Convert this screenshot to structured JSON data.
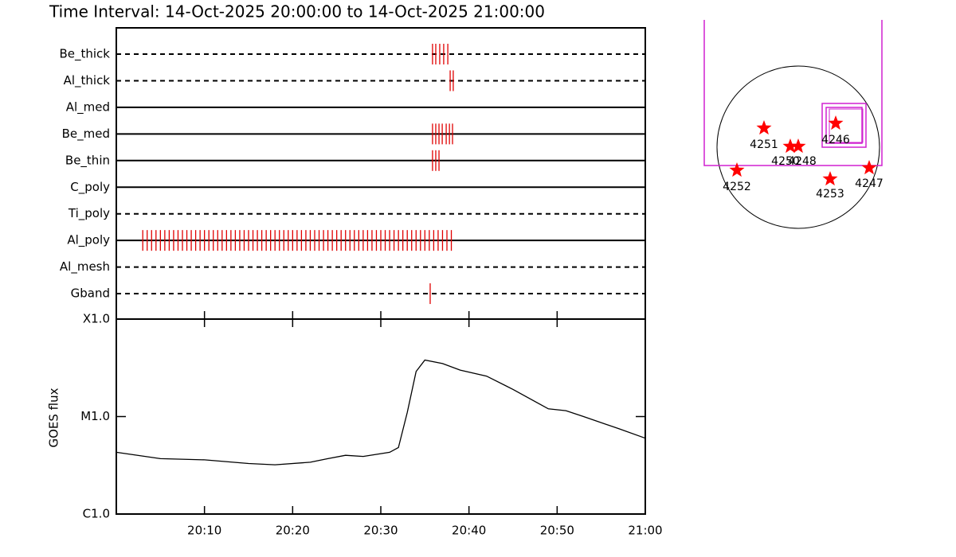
{
  "chart_data": [
    {
      "type": "timeline",
      "title": "Time Interval: 14-Oct-2025 20:00:00 to 14-Oct-2025 21:00:00",
      "categories": [
        "Be_thick",
        "Al_thick",
        "Al_med",
        "Be_med",
        "Be_thin",
        "C_poly",
        "Ti_poly",
        "Al_poly",
        "Al_mesh",
        "Gband"
      ],
      "line_styles": [
        "dashed",
        "dashed",
        "solid",
        "solid",
        "solid",
        "solid",
        "dashed",
        "solid",
        "dashed",
        "dashed"
      ],
      "color": "#e00000",
      "xlim": [
        "20:00",
        "21:00"
      ],
      "events": [
        [
          "20:35:52",
          "20:36:14",
          "20:36:41",
          "20:37:08",
          "20:37:36"
        ],
        [
          "20:37:52",
          "20:38:13"
        ],
        [],
        [
          "20:35:52",
          "20:36:14",
          "20:36:36",
          "20:36:58",
          "20:37:25",
          "20:37:47",
          "20:38:08"
        ],
        [
          "20:35:52",
          "20:36:14",
          "20:36:36"
        ],
        [],
        [],
        [
          "20:03:00",
          "20:03:30",
          "20:04:00",
          "20:04:30",
          "20:05:00",
          "20:05:30",
          "20:06:00",
          "20:06:30",
          "20:07:00",
          "20:07:30",
          "20:08:00",
          "20:08:30",
          "20:09:00",
          "20:09:30",
          "20:10:00",
          "20:10:30",
          "20:11:00",
          "20:11:30",
          "20:12:00",
          "20:12:30",
          "20:13:00",
          "20:13:30",
          "20:14:00",
          "20:14:30",
          "20:15:00",
          "20:15:30",
          "20:16:00",
          "20:16:30",
          "20:17:00",
          "20:17:30",
          "20:18:00",
          "20:18:30",
          "20:19:00",
          "20:19:30",
          "20:20:00",
          "20:20:30",
          "20:21:00",
          "20:21:30",
          "20:22:00",
          "20:22:30",
          "20:23:00",
          "20:23:30",
          "20:24:00",
          "20:24:30",
          "20:25:00",
          "20:25:30",
          "20:26:00",
          "20:26:30",
          "20:27:00",
          "20:27:30",
          "20:28:00",
          "20:28:30",
          "20:29:00",
          "20:29:30",
          "20:30:00",
          "20:30:30",
          "20:31:00",
          "20:31:30",
          "20:32:00",
          "20:32:30",
          "20:33:00",
          "20:33:30",
          "20:34:00",
          "20:34:30",
          "20:35:00",
          "20:35:30",
          "20:36:00",
          "20:36:30",
          "20:37:00",
          "20:37:30",
          "20:38:00"
        ],
        [],
        [
          "20:35:36"
        ]
      ]
    },
    {
      "type": "line",
      "ylabel": "GOES flux",
      "log_scale": true,
      "color": "#000000",
      "xlim": [
        "20:00",
        "21:00"
      ],
      "xticks": [
        "20:10",
        "20:20",
        "20:30",
        "20:40",
        "20:50",
        "21:00"
      ],
      "ylim": [
        1e-06,
        0.0001
      ],
      "yticks": [
        {
          "value": 1e-06,
          "label": "C1.0"
        },
        {
          "value": 1e-05,
          "label": "M1.0"
        },
        {
          "value": 0.0001,
          "label": "X1.0"
        }
      ],
      "x": [
        "20:00",
        "20:05",
        "20:10",
        "20:15",
        "20:18",
        "20:22",
        "20:24",
        "20:26",
        "20:28",
        "20:31",
        "20:32",
        "20:33",
        "20:34",
        "20:35",
        "20:37",
        "20:39",
        "20:42",
        "20:45",
        "20:49",
        "20:51",
        "20:53",
        "20:57",
        "21:00"
      ],
      "values": [
        4.3e-06,
        3.7e-06,
        3.6e-06,
        3.3e-06,
        3.2e-06,
        3.4e-06,
        3.7e-06,
        4e-06,
        3.9e-06,
        4.3e-06,
        4.8e-06,
        1.1e-05,
        2.9e-05,
        3.8e-05,
        3.5e-05,
        3e-05,
        2.6e-05,
        1.9e-05,
        1.2e-05,
        1.15e-05,
        1e-05,
        7.5e-06,
        6e-06
      ]
    },
    {
      "type": "map",
      "color": "#ff0000",
      "regions": [
        "4251",
        "4250",
        "4248",
        "4246",
        "4252",
        "4253",
        "4247"
      ]
    }
  ]
}
